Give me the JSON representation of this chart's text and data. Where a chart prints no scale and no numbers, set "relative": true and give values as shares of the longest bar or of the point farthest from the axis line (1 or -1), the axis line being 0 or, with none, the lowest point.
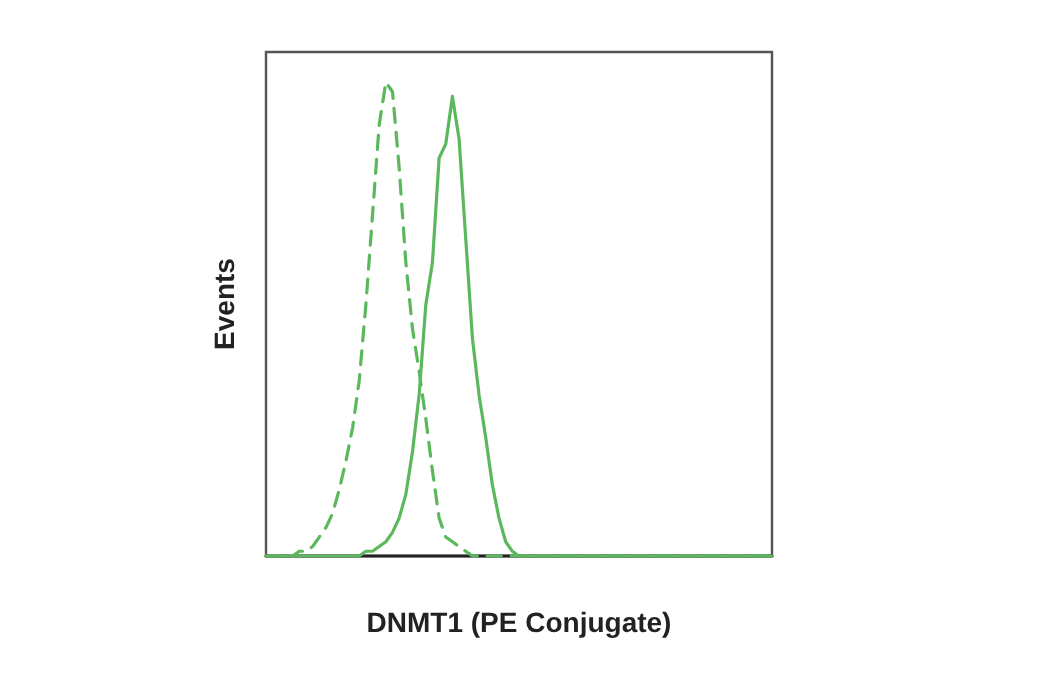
{
  "chart_data": {
    "type": "line",
    "relative": true,
    "xlabel": "DNMT1 (PE Conjugate)",
    "ylabel": "Events",
    "marker": "none",
    "grid": false,
    "categories": [
      null,
      null,
      null,
      null,
      null,
      null,
      null,
      null,
      null,
      null,
      null,
      null,
      null,
      null,
      null,
      null,
      null,
      null,
      null,
      null,
      null,
      null,
      null,
      null,
      null,
      null,
      null,
      null,
      null,
      null,
      null,
      null,
      null,
      null,
      null,
      null,
      null,
      null,
      null,
      null,
      null,
      null,
      null,
      null,
      null,
      null,
      null,
      null,
      null,
      null,
      null,
      null,
      null,
      null,
      null,
      null,
      null,
      null,
      null,
      null,
      null,
      null,
      null,
      null,
      null,
      null,
      null,
      null,
      null,
      null,
      null,
      null,
      null,
      null,
      null,
      null,
      null
    ],
    "series": [
      {
        "color": "#5cb85c",
        "line_style": "dashed",
        "values": [
          0,
          0,
          0,
          0,
          0,
          0.01,
          0.01,
          0.02,
          0.04,
          0.06,
          0.09,
          0.14,
          0.2,
          0.27,
          0.37,
          0.53,
          0.72,
          0.91,
          1,
          0.98,
          0.82,
          0.62,
          0.48,
          0.39,
          0.29,
          0.18,
          0.08,
          0.04,
          0.03,
          0.02,
          0.01,
          0,
          0,
          0,
          0,
          0,
          0,
          0,
          0,
          0,
          0,
          0,
          0,
          0,
          0,
          0,
          0,
          0,
          0,
          0,
          0,
          0,
          0,
          0,
          0,
          0,
          0,
          0,
          0,
          0,
          0,
          0,
          0,
          0,
          0,
          0,
          0,
          0,
          0,
          0,
          0,
          0,
          0,
          0,
          0,
          0,
          0
        ]
      },
      {
        "color": "#5cb85c",
        "line_style": "solid",
        "values": [
          0,
          0,
          0,
          0,
          0,
          0,
          0,
          0,
          0,
          0,
          0,
          0,
          0,
          0,
          0,
          0.01,
          0.01,
          0.02,
          0.03,
          0.05,
          0.08,
          0.13,
          0.22,
          0.34,
          0.53,
          0.62,
          0.84,
          0.87,
          0.97,
          0.88,
          0.67,
          0.46,
          0.34,
          0.25,
          0.15,
          0.08,
          0.03,
          0.01,
          0,
          0,
          0,
          0,
          0,
          0,
          0,
          0,
          0,
          0,
          0,
          0,
          0,
          0,
          0,
          0,
          0,
          0,
          0,
          0,
          0,
          0,
          0,
          0,
          0,
          0,
          0,
          0,
          0,
          0,
          0,
          0,
          0,
          0,
          0,
          0,
          0,
          0,
          0
        ]
      }
    ]
  }
}
